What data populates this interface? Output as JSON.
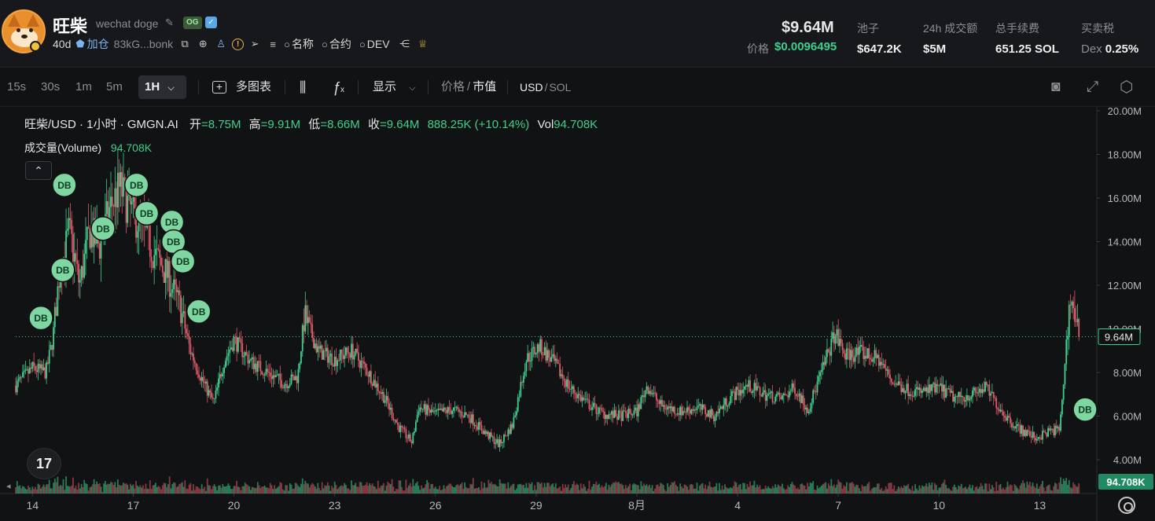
{
  "token": {
    "name": "旺柴",
    "subtitle": "wechat doge",
    "og_badge": "OG",
    "age": "40d",
    "add_pool": "加仓",
    "address": "83kG...bonk",
    "search_name": "名称",
    "search_contract": "合约",
    "search_dev": "DEV"
  },
  "stats": {
    "market_cap": "$9.64M",
    "price_label": "价格",
    "price": "$0.0096495",
    "pool_label": "池子",
    "pool": "$647.2K",
    "volume_label": "24h 成交额",
    "volume": "$5M",
    "fees_label": "总手续费",
    "fees": "651.25 SOL",
    "tax_label": "买卖税",
    "tax_prefix": "Dex",
    "tax": "0.25%"
  },
  "toolbar": {
    "intervals": [
      "15s",
      "30s",
      "1m",
      "5m"
    ],
    "selected_interval": "1H",
    "multi_chart": "多图表",
    "display": "显示",
    "price_toggle": "价格",
    "mcap_toggle": "市值",
    "usd": "USD",
    "sol": "SOL"
  },
  "legend": {
    "title": "旺柴/USD · 1小时 · GMGN.AI",
    "open_label": "开",
    "open": "=8.75M",
    "high_label": "高",
    "high": "=9.91M",
    "low_label": "低",
    "low": "=8.66M",
    "close_label": "收",
    "close": "=9.64M",
    "change": "888.25K (+10.14%)",
    "vol_label": "Vol",
    "vol": "94.708K",
    "volume_series": "成交量(Volume)",
    "volume_value": "94.708K"
  },
  "colors": {
    "up": "#3ecf8e",
    "down": "#e05a6a",
    "marker": "#7fd6a0",
    "axis_text": "#b5b8be"
  },
  "chart_data": {
    "type": "candlestick",
    "y_unit": "market cap (USD)",
    "ylim": [
      3.0,
      20.5
    ],
    "y_ticks": [
      "4.00M",
      "6.00M",
      "8.00M",
      "10.00M",
      "12.00M",
      "14.00M",
      "16.00M",
      "18.00M",
      "20.00M"
    ],
    "x_ticks": [
      "14",
      "17",
      "20",
      "23",
      "26",
      "29",
      "8月",
      "4",
      "7",
      "10",
      "13"
    ],
    "x_tick_positions": [
      0.5,
      3.5,
      6.5,
      9.5,
      12.5,
      15.5,
      18.5,
      21.5,
      24.5,
      27.5,
      30.5
    ],
    "x_range_days": [
      0.0,
      32.2
    ],
    "current_value": 9.64,
    "current_label": "9.64M",
    "volume_label": "94.708K",
    "trend_points": [
      [
        0.0,
        7.4
      ],
      [
        0.5,
        8.2
      ],
      [
        0.9,
        8.0
      ],
      [
        1.1,
        9.5
      ],
      [
        1.3,
        12.5
      ],
      [
        1.6,
        14.5
      ],
      [
        1.9,
        12.0
      ],
      [
        2.2,
        14.5
      ],
      [
        2.5,
        13.8
      ],
      [
        2.8,
        15.5
      ],
      [
        3.1,
        16.5
      ],
      [
        3.4,
        15.5
      ],
      [
        3.8,
        14.5
      ],
      [
        4.1,
        13.5
      ],
      [
        4.5,
        12.5
      ],
      [
        4.9,
        11.0
      ],
      [
        5.2,
        9.0
      ],
      [
        5.6,
        7.5
      ],
      [
        5.9,
        6.6
      ],
      [
        6.2,
        8.5
      ],
      [
        6.5,
        9.5
      ],
      [
        7.0,
        8.5
      ],
      [
        7.5,
        8.0
      ],
      [
        8.0,
        7.5
      ],
      [
        8.4,
        7.8
      ],
      [
        8.6,
        10.6
      ],
      [
        9.0,
        9.0
      ],
      [
        9.5,
        8.6
      ],
      [
        10.0,
        9.0
      ],
      [
        10.5,
        8.0
      ],
      [
        11.0,
        6.8
      ],
      [
        11.4,
        5.5
      ],
      [
        11.8,
        4.8
      ],
      [
        12.0,
        6.4
      ],
      [
        12.5,
        6.1
      ],
      [
        13.0,
        6.3
      ],
      [
        13.5,
        6.0
      ],
      [
        14.0,
        5.2
      ],
      [
        14.4,
        4.7
      ],
      [
        14.8,
        5.6
      ],
      [
        15.2,
        8.6
      ],
      [
        15.6,
        9.2
      ],
      [
        16.0,
        8.5
      ],
      [
        16.5,
        7.3
      ],
      [
        17.0,
        6.6
      ],
      [
        17.5,
        6.1
      ],
      [
        18.0,
        6.0
      ],
      [
        18.5,
        6.2
      ],
      [
        18.8,
        7.4
      ],
      [
        19.2,
        6.5
      ],
      [
        19.8,
        6.2
      ],
      [
        20.3,
        6.4
      ],
      [
        20.8,
        6.0
      ],
      [
        21.3,
        6.9
      ],
      [
        21.8,
        7.4
      ],
      [
        22.3,
        7.0
      ],
      [
        22.8,
        6.8
      ],
      [
        23.2,
        7.3
      ],
      [
        23.6,
        6.3
      ],
      [
        24.0,
        8.0
      ],
      [
        24.4,
        9.8
      ],
      [
        24.7,
        8.8
      ],
      [
        25.2,
        8.9
      ],
      [
        25.7,
        8.6
      ],
      [
        26.1,
        7.6
      ],
      [
        26.6,
        7.2
      ],
      [
        27.0,
        7.1
      ],
      [
        27.5,
        7.3
      ],
      [
        28.0,
        6.8
      ],
      [
        28.5,
        7.0
      ],
      [
        28.9,
        7.3
      ],
      [
        29.2,
        6.6
      ],
      [
        29.6,
        5.8
      ],
      [
        30.0,
        5.3
      ],
      [
        30.4,
        5.0
      ],
      [
        30.8,
        5.3
      ],
      [
        31.1,
        5.4
      ],
      [
        31.4,
        11.5
      ],
      [
        31.7,
        9.64
      ]
    ],
    "markers": [
      {
        "label": "DB",
        "day": 0.75,
        "value": 10.5
      },
      {
        "label": "DB",
        "day": 1.4,
        "value": 12.7
      },
      {
        "label": "DB",
        "day": 1.45,
        "value": 16.6
      },
      {
        "label": "DB",
        "day": 2.6,
        "value": 14.6
      },
      {
        "label": "DB",
        "day": 3.6,
        "value": 16.6
      },
      {
        "label": "DB",
        "day": 3.9,
        "value": 15.3
      },
      {
        "label": "DB",
        "day": 4.65,
        "value": 14.9
      },
      {
        "label": "DB",
        "day": 4.7,
        "value": 14.0
      },
      {
        "label": "DB",
        "day": 4.98,
        "value": 13.1
      },
      {
        "label": "DB",
        "day": 5.45,
        "value": 10.8
      },
      {
        "label": "DB",
        "day": 31.85,
        "value": 6.3
      }
    ]
  }
}
